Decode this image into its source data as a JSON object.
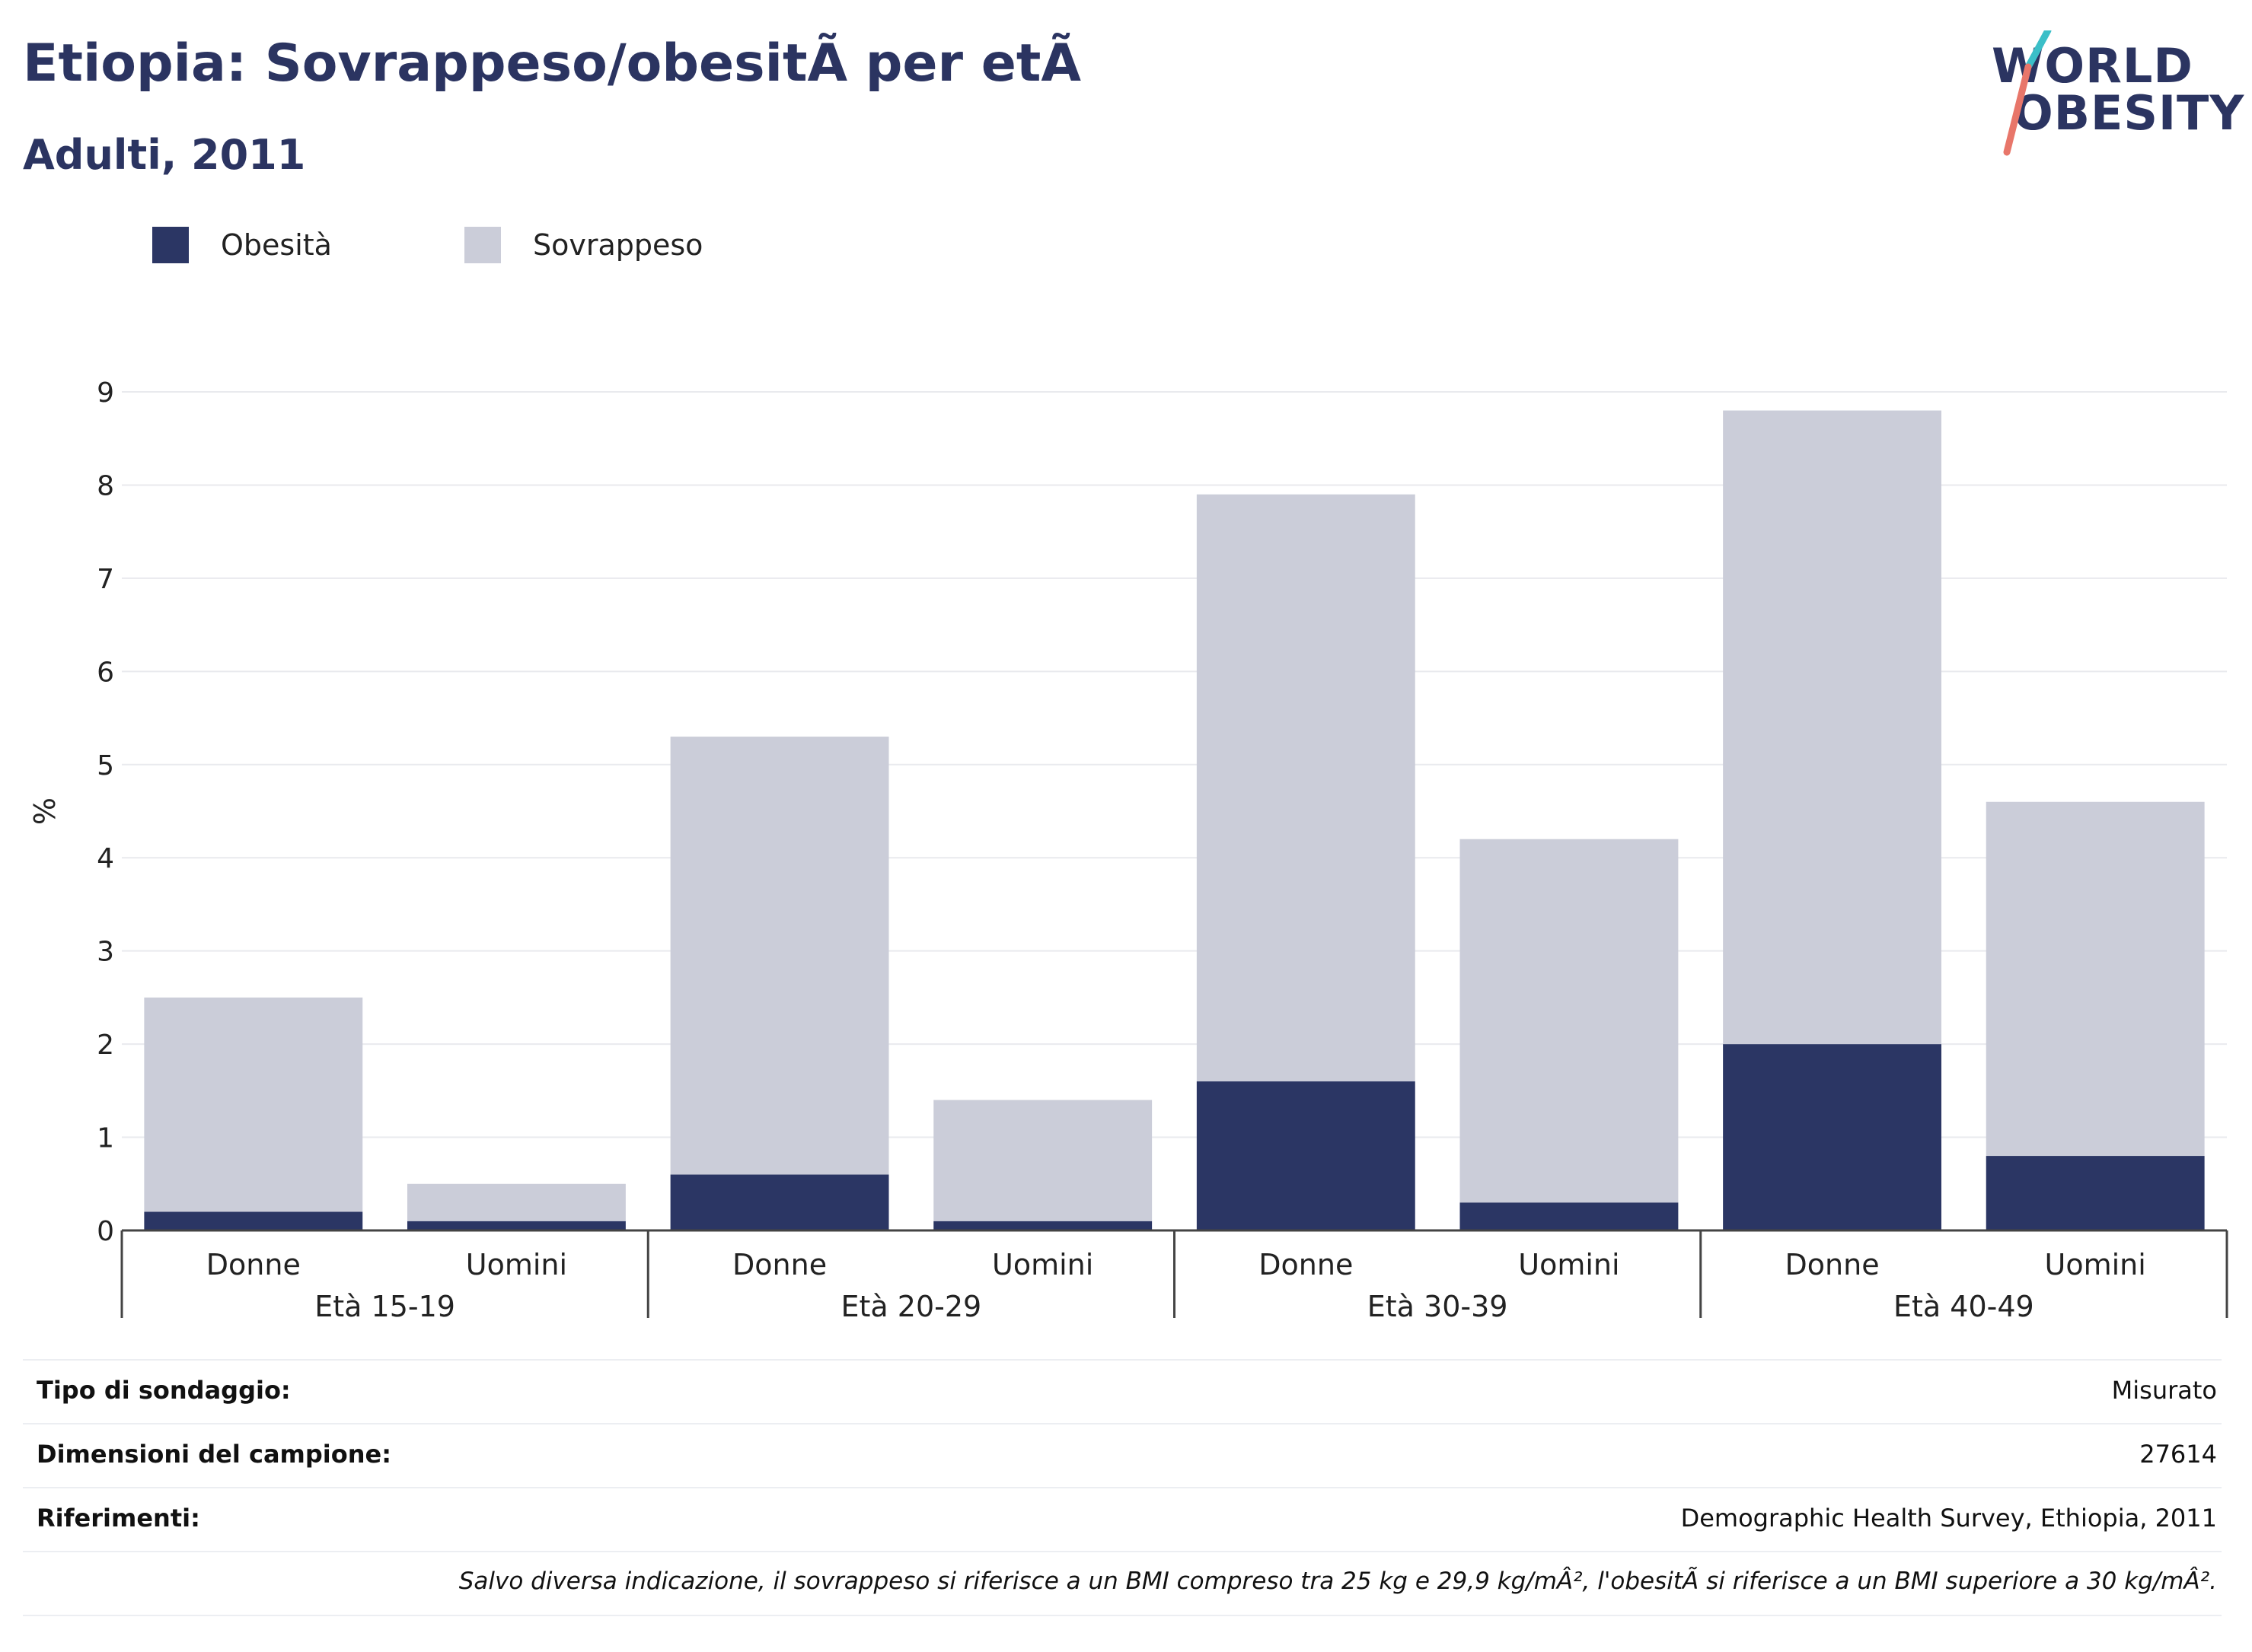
{
  "header": {
    "title": "Etiopia: Sovrappeso/obesitÃ  per etÃ",
    "subtitle": "Adulti, 2011"
  },
  "logo": {
    "line1": "WORLD",
    "line2": "OBESITY"
  },
  "legend": [
    {
      "label": "Obesità",
      "color": "#2b3664"
    },
    {
      "label": "Sovrappeso",
      "color": "#cbcdd9"
    }
  ],
  "chart_data": {
    "type": "bar",
    "stacked": true,
    "ylabel": "%",
    "ylim": [
      0,
      9
    ],
    "yticks": [
      0,
      1,
      2,
      3,
      4,
      5,
      6,
      7,
      8,
      9
    ],
    "grid": true,
    "legend_position": "top-left",
    "groups": [
      "Età 15-19",
      "Età 20-29",
      "Età 30-39",
      "Età 40-49"
    ],
    "categories": [
      "Donne",
      "Uomini",
      "Donne",
      "Uomini",
      "Donne",
      "Uomini",
      "Donne",
      "Uomini"
    ],
    "series": [
      {
        "name": "Obesità",
        "color": "#2b3664",
        "values": [
          0.2,
          0.1,
          0.6,
          0.1,
          1.6,
          0.3,
          2.0,
          0.8
        ]
      },
      {
        "name": "Sovrappeso",
        "color": "#cbcdd9",
        "values": [
          2.3,
          0.4,
          4.7,
          1.3,
          6.3,
          3.9,
          6.8,
          3.8
        ]
      }
    ]
  },
  "info_table": [
    {
      "label": "Tipo di sondaggio:",
      "value": "Misurato"
    },
    {
      "label": "Dimensioni del campione:",
      "value": "27614"
    },
    {
      "label": "Riferimenti:",
      "value": "Demographic Health Survey, Ethiopia, 2011"
    }
  ],
  "footnote": "Salvo diversa indicazione, il sovrappeso si riferisce a un BMI compreso tra 25 kg e 29,9 kg/mÂ², l'obesitÃ  si riferisce a un BMI superiore a 30 kg/mÂ²."
}
